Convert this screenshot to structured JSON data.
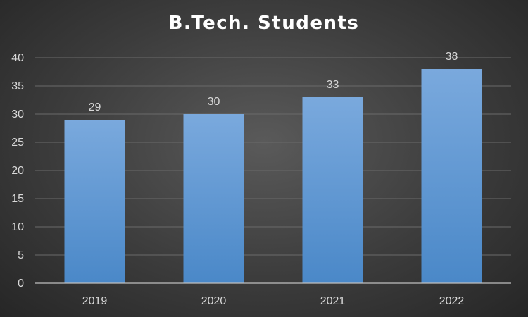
{
  "chart_data": {
    "type": "bar",
    "title": "B.Tech. Students",
    "categories": [
      "2019",
      "2020",
      "2021",
      "2022"
    ],
    "values": [
      29,
      30,
      33,
      38
    ],
    "data_labels": [
      "29",
      "30",
      "33",
      "38"
    ],
    "y_ticks": [
      "0",
      "5",
      "10",
      "15",
      "20",
      "25",
      "30",
      "35",
      "40"
    ],
    "ylim": [
      0,
      40
    ],
    "grid": true,
    "legend": "none",
    "colors": {
      "bar_top": "#7aa9dd",
      "bar_bottom": "#4a88c8",
      "grid": "#6a6a6a",
      "axis": "#bfbfbf",
      "text": "#d9d9d9"
    }
  }
}
